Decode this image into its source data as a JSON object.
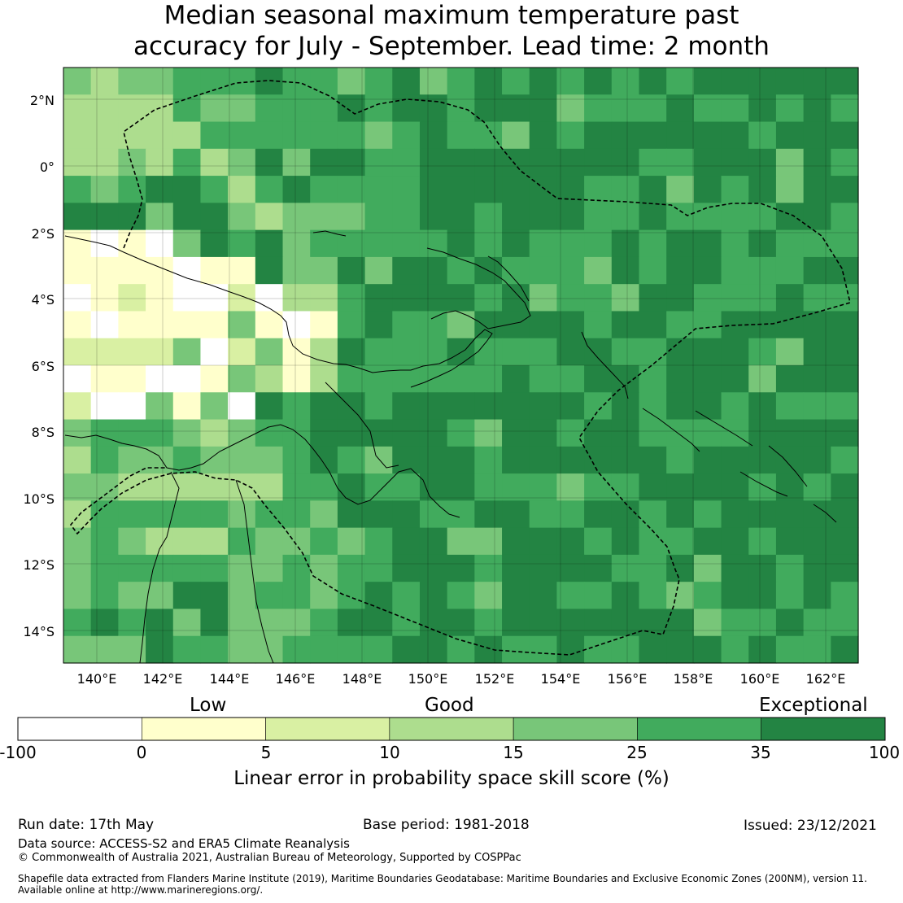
{
  "title": {
    "line1": "Median seasonal maximum temperature past",
    "line2": "accuracy for July - September. Lead time: 2 month"
  },
  "map": {
    "lat_labels": [
      "2°N",
      "0°",
      "2°S",
      "4°S",
      "6°S",
      "8°S",
      "10°S",
      "12°S",
      "14°S"
    ],
    "lon_labels": [
      "140°E",
      "142°E",
      "144°E",
      "146°E",
      "148°E",
      "150°E",
      "152°E",
      "154°E",
      "156°E",
      "158°E",
      "160°E",
      "162°E"
    ]
  },
  "legend": {
    "words": [
      "Low",
      "Good",
      "Exceptional"
    ],
    "ticks": [
      "-100",
      "0",
      "5",
      "10",
      "15",
      "25",
      "35",
      "100"
    ],
    "colors": [
      "#ffffff",
      "#ffffcc",
      "#d9f0a3",
      "#addd8e",
      "#78c679",
      "#41ab5d",
      "#238443"
    ],
    "label": "Linear error in probability space skill score (%)"
  },
  "footer": {
    "run_date": "Run date: 17th May",
    "base_period": "Base period: 1981-2018",
    "issued": "Issued: 23/12/2021",
    "data_source": "Data source: ACCESS-S2 and ERA5 Climate Reanalysis",
    "copyright": "© Commonwealth of Australia 2021, Australian Bureau of Meteorology, Supported by COSPPac",
    "shapefile_line1": "Shapefile data extracted from Flanders Marine Institute (2019), Maritime Boundaries Geodatabase: Maritime Boundaries and Exclusive Economic Zones (200NM), version 11.",
    "shapefile_line2": "Available online at http://www.marineregions.org/."
  }
}
